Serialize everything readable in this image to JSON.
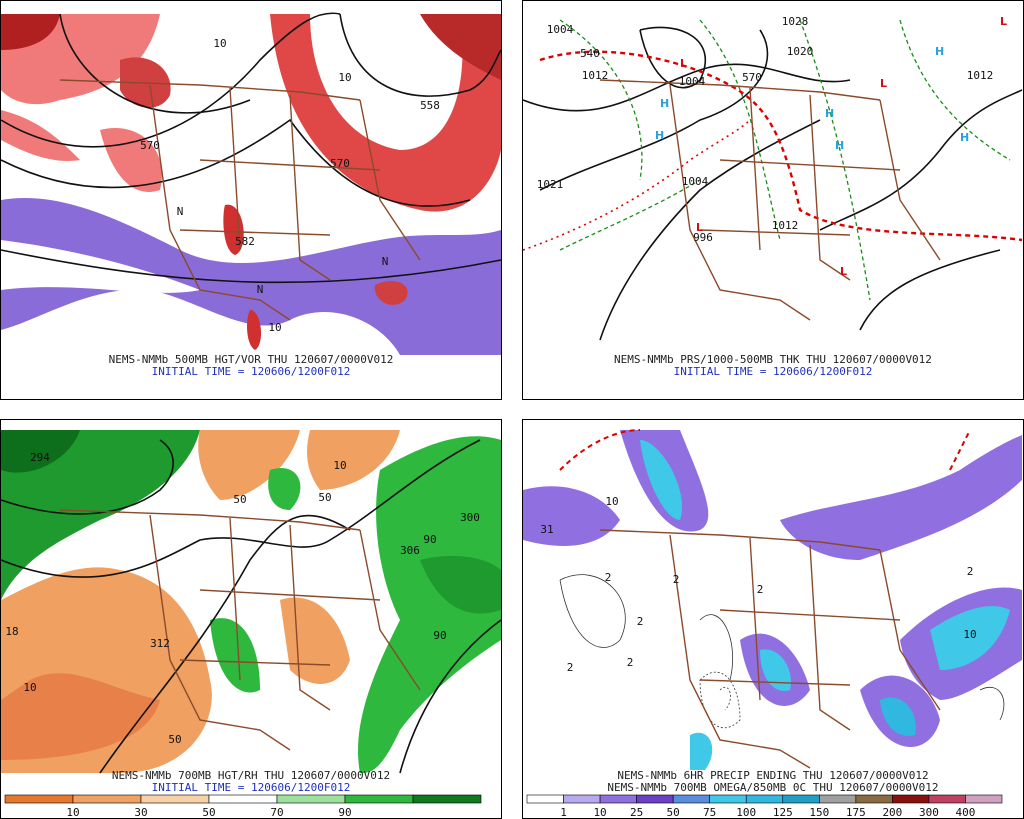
{
  "panels": [
    {
      "caption": [
        "NEMS-NMMb 500MB HGT/VOR THU 120607/0000V012"
      ],
      "initial": "INITIAL TIME = 120606/1200F012",
      "labels": [
        "558",
        "570",
        "582",
        "570",
        "10",
        "10",
        "10",
        "N",
        "N",
        "N"
      ]
    },
    {
      "caption": [
        "NEMS-NMMb PRS/1000-500MB THK THU 120607/0000V012"
      ],
      "initial": "INITIAL TIME = 120606/1200F012",
      "labels": [
        "1004",
        "1028",
        "1020",
        "1012",
        "1012",
        "1021",
        "1004",
        "1012",
        "996",
        "1004",
        "540",
        "570"
      ]
    },
    {
      "caption": [
        "NEMS-NMMb 700MB HGT/RH THU 120607/0000V012"
      ],
      "initial": "INITIAL TIME = 120606/1200F012",
      "labels": [
        "294",
        "300",
        "306",
        "312",
        "50",
        "50",
        "10",
        "10",
        "90",
        "90",
        "18",
        "50"
      ],
      "colorbar": [
        "10",
        "30",
        "50",
        "70",
        "90"
      ]
    },
    {
      "caption": [
        "NEMS-NMMb 6HR PRECIP ENDING THU 120607/0000V012",
        "NEMS-NMMb 700MB OMEGA/850MB 0C THU 120607/0000V012"
      ],
      "labels": [
        "2",
        "2",
        "2",
        "2",
        "10",
        "10",
        "31",
        "2",
        "2",
        "2"
      ],
      "colorbar": [
        "1",
        "10",
        "25",
        "50",
        "75",
        "100",
        "125",
        "150",
        "175",
        "200",
        "300",
        "400"
      ]
    }
  ]
}
